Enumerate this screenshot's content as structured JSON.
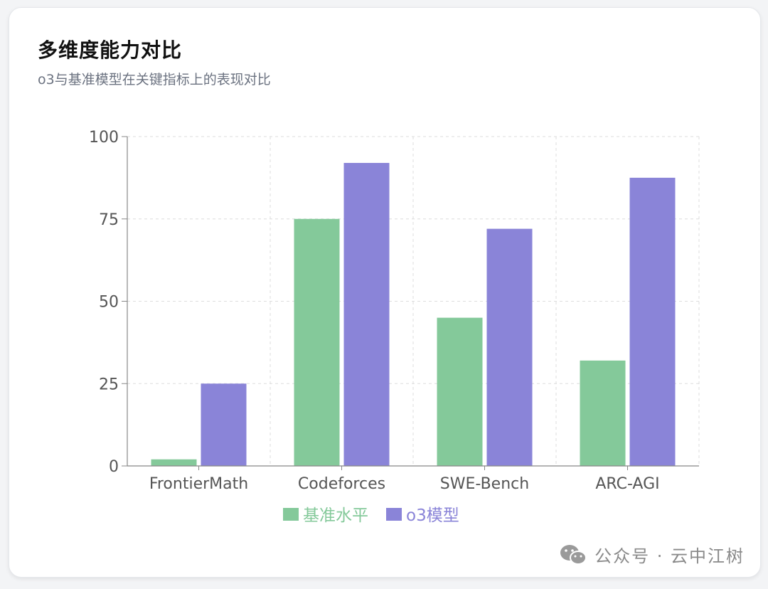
{
  "card": {
    "title": "多维度能力对比",
    "subtitle": "o3与基准模型在关键指标上的表现对比"
  },
  "watermark": {
    "text": "公众号 · 云中江树",
    "icon": "wechat-icon"
  },
  "colors": {
    "baseline": "#84c99a",
    "o3": "#8a84d8",
    "grid": "#dddddd",
    "axis": "#888888",
    "tick_text": "#555555"
  },
  "chart_data": {
    "type": "bar",
    "categories": [
      "FrontierMath",
      "Codeforces",
      "SWE-Bench",
      "ARC-AGI"
    ],
    "series": [
      {
        "name": "基准水平",
        "values": [
          2,
          75,
          45,
          32
        ],
        "color": "#84c99a"
      },
      {
        "name": "o3模型",
        "values": [
          25,
          92,
          72,
          87.5
        ],
        "color": "#8a84d8"
      }
    ],
    "ylim": [
      0,
      100
    ],
    "yticks": [
      0,
      25,
      50,
      75,
      100
    ],
    "grid": true,
    "legend": "bottom-center"
  }
}
